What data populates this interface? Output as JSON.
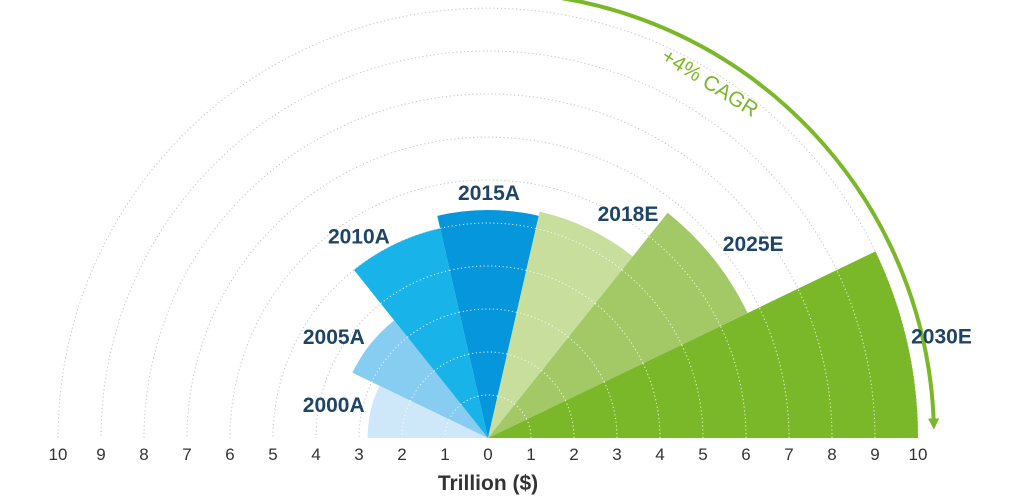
{
  "chart_data": {
    "type": "polar-bar",
    "xlabel": "Trillion ($)",
    "axis": {
      "min": 0,
      "max": 10,
      "tick_labels_left": [
        "10",
        "9",
        "8",
        "7",
        "6",
        "5",
        "4",
        "3",
        "2",
        "1"
      ],
      "tick_labels_right": [
        "0",
        "1",
        "2",
        "3",
        "4",
        "5",
        "6",
        "7",
        "8",
        "9",
        "10"
      ]
    },
    "grid": true,
    "categories": [
      "2000A",
      "2005A",
      "2010A",
      "2015A",
      "2018E",
      "2025E",
      "2030E"
    ],
    "values": [
      2.8,
      3.5,
      5.0,
      5.3,
      5.4,
      6.7,
      10.0
    ],
    "colors": [
      "#cfe8f9",
      "#87cdf2",
      "#18b3e8",
      "#0596dc",
      "#c7de9c",
      "#a2c966",
      "#7ab829"
    ],
    "annotation": {
      "text": "+4% CAGR",
      "color": "#7ab829"
    }
  }
}
